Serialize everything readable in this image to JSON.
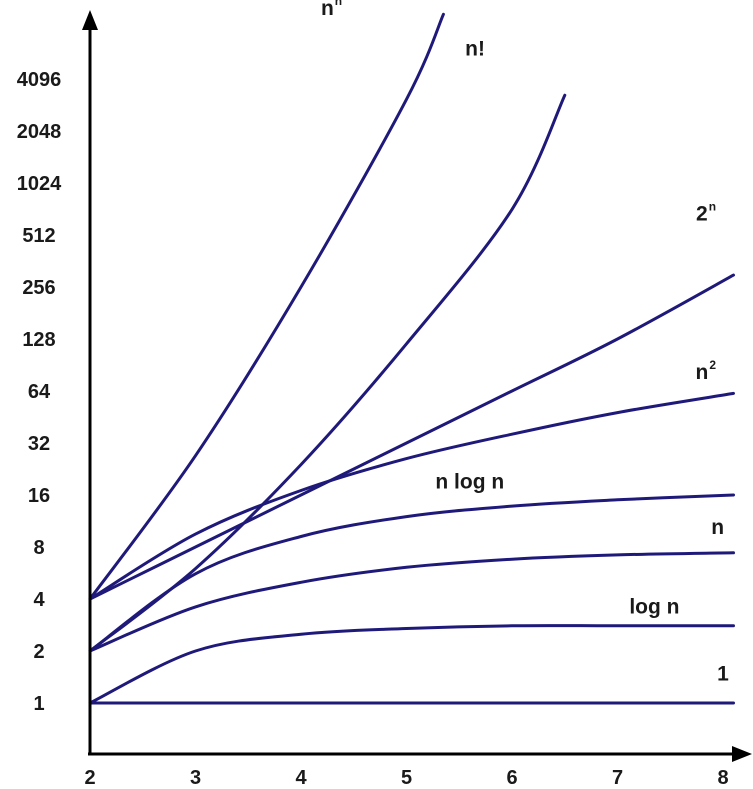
{
  "chart_data": {
    "type": "line",
    "title": "",
    "xlabel": "",
    "ylabel": "",
    "y_scale": "log2",
    "x_ticks": [
      2,
      3,
      4,
      5,
      6,
      7,
      8
    ],
    "y_ticks": [
      1,
      2,
      4,
      8,
      16,
      32,
      64,
      128,
      256,
      512,
      1024,
      2048,
      4096
    ],
    "y_tick_labels": [
      "1",
      "2",
      "4",
      "8",
      "16",
      "32",
      "64",
      "128",
      "256",
      "512",
      "1024",
      "2048",
      "4096"
    ],
    "x_tick_labels": [
      "2",
      "3",
      "4",
      "5",
      "6",
      "7",
      "8"
    ],
    "xlim": [
      2,
      8.1
    ],
    "ylim": [
      0.5,
      12000
    ],
    "grid": false,
    "line_color": "#1f1a7a",
    "series": [
      {
        "name": "n",
        "sup": "n",
        "label_x": 4.25,
        "label_y": 9600,
        "x": [
          2,
          3,
          4,
          5,
          5.35
        ],
        "y": [
          4,
          27,
          256,
          3125,
          9700
        ]
      },
      {
        "name": "n!",
        "sup": "",
        "label_x": 5.65,
        "label_y": 5600,
        "x": [
          2,
          3,
          4,
          5,
          6,
          6.5
        ],
        "y": [
          2,
          6,
          24,
          120,
          720,
          3300
        ]
      },
      {
        "name": "2",
        "sup": "n",
        "label_x": 7.8,
        "label_y": 620,
        "x": [
          2,
          3,
          4,
          5,
          6,
          7,
          8.1
        ],
        "y": [
          4,
          8,
          16,
          32,
          64,
          128,
          300
        ]
      },
      {
        "name": "n",
        "sup": "2",
        "label_x": 7.8,
        "label_y": 75,
        "x": [
          2,
          3,
          4,
          5,
          6,
          7,
          8.1
        ],
        "y": [
          4,
          9.5,
          17,
          26,
          36,
          48,
          62
        ]
      },
      {
        "name": "n log n",
        "sup": "",
        "label_x": 5.6,
        "label_y": 17.5,
        "x": [
          2,
          3,
          4,
          5,
          6,
          7,
          8.1
        ],
        "y": [
          2,
          5.6,
          9.2,
          12,
          13.8,
          15,
          16
        ]
      },
      {
        "name": "n",
        "sup": "",
        "label_x": 7.95,
        "label_y": 9.5,
        "x": [
          2,
          3,
          4,
          5,
          6,
          7,
          8.1
        ],
        "y": [
          2,
          3.6,
          5,
          6.1,
          6.8,
          7.2,
          7.4
        ]
      },
      {
        "name": "log n",
        "sup": "",
        "label_x": 7.35,
        "label_y": 3.3,
        "x": [
          2,
          3,
          4,
          5,
          6,
          7,
          8.1
        ],
        "y": [
          1,
          2,
          2.5,
          2.7,
          2.8,
          2.8,
          2.8
        ]
      },
      {
        "name": "1",
        "sup": "",
        "label_x": 8.0,
        "label_y": 1.35,
        "x": [
          2,
          3,
          4,
          5,
          6,
          7,
          8.1
        ],
        "y": [
          1,
          1,
          1,
          1,
          1,
          1,
          1
        ]
      }
    ]
  }
}
